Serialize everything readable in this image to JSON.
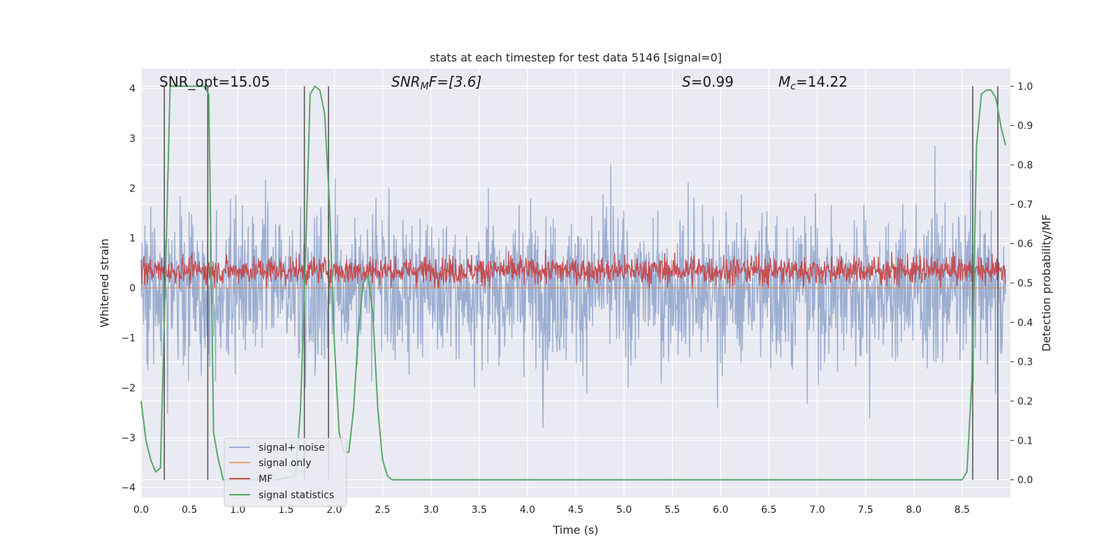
{
  "chart_data": {
    "type": "line",
    "title": "stats at each timestep for test data 5146 [signal=0]",
    "xlabel": "Time (s)",
    "ylabel": "Whitened strain",
    "y2label": "Detection probability/MF",
    "xlim": [
      0.0,
      9.0
    ],
    "ylim": [
      -4.2,
      4.4
    ],
    "y2lim": [
      -0.045,
      1.045
    ],
    "xticks": [
      "0.0",
      "0.5",
      "1.0",
      "1.5",
      "2.0",
      "2.5",
      "3.0",
      "3.5",
      "4.0",
      "4.5",
      "5.0",
      "5.5",
      "6.0",
      "6.5",
      "7.0",
      "7.5",
      "8.0",
      "8.5"
    ],
    "xtick_values": [
      0.0,
      0.5,
      1.0,
      1.5,
      2.0,
      2.5,
      3.0,
      3.5,
      4.0,
      4.5,
      5.0,
      5.5,
      6.0,
      6.5,
      7.0,
      7.5,
      8.0,
      8.5
    ],
    "yticks": [
      "4",
      "3",
      "2",
      "1",
      "0",
      "−1",
      "−2",
      "−3",
      "−4"
    ],
    "ytick_values": [
      4,
      3,
      2,
      1,
      0,
      -1,
      -2,
      -3,
      -4
    ],
    "y2ticks": [
      "1.0",
      "0.9",
      "0.8",
      "0.7",
      "0.6",
      "0.5",
      "0.4",
      "0.3",
      "0.2",
      "0.1",
      "0.0"
    ],
    "y2tick_values": [
      1.0,
      0.9,
      0.8,
      0.7,
      0.6,
      0.5,
      0.4,
      0.3,
      0.2,
      0.1,
      0.0
    ],
    "grid": true,
    "legend_placement": "lower-left",
    "annotations": {
      "snr_opt": "SNR_opt=15.05",
      "snr_mf_base": "SNR",
      "snr_mf_sub": "M",
      "snr_mf_rest": "F=[3.6]",
      "s_label": "S",
      "s_rest": "=0.99",
      "mc_base": "M",
      "mc_sub": "c",
      "mc_rest": "=14.22"
    },
    "series": [
      {
        "name": "signal+ noise",
        "color": "#4c72b0",
        "axis": "left",
        "style": "noise",
        "amplitude_envelope": 1.6,
        "peak_range": [
          -3.7,
          4.0
        ]
      },
      {
        "name": "signal only",
        "color": "#dd8452",
        "axis": "left",
        "style": "flat",
        "value": 0.0
      },
      {
        "name": "MF",
        "color": "#c44e52",
        "axis": "left",
        "style": "noise-positive",
        "range": [
          0.0,
          1.0
        ]
      },
      {
        "name": "signal statistics",
        "color": "#55a868",
        "axis": "right",
        "x": [
          0.0,
          0.05,
          0.1,
          0.15,
          0.2,
          0.25,
          0.3,
          0.4,
          0.5,
          0.6,
          0.65,
          0.7,
          0.75,
          0.8,
          0.85,
          0.9,
          1.0,
          1.2,
          1.4,
          1.6,
          1.65,
          1.7,
          1.75,
          1.8,
          1.85,
          1.9,
          1.95,
          2.0,
          2.05,
          2.1,
          2.15,
          2.2,
          2.25,
          2.3,
          2.35,
          2.4,
          2.45,
          2.5,
          2.55,
          2.6,
          2.7,
          3.0,
          4.0,
          5.0,
          6.0,
          7.0,
          8.0,
          8.5,
          8.55,
          8.6,
          8.65,
          8.7,
          8.75,
          8.8,
          8.85,
          8.9,
          8.95
        ],
        "y": [
          0.2,
          0.1,
          0.05,
          0.02,
          0.03,
          0.5,
          1.0,
          1.0,
          1.0,
          1.0,
          1.0,
          0.98,
          0.12,
          0.05,
          0.0,
          0.0,
          0.0,
          0.0,
          0.0,
          0.01,
          0.18,
          0.55,
          0.98,
          1.0,
          0.99,
          0.93,
          0.7,
          0.35,
          0.12,
          0.07,
          0.07,
          0.18,
          0.38,
          0.5,
          0.52,
          0.42,
          0.18,
          0.05,
          0.01,
          0.0,
          0.0,
          0.0,
          0.0,
          0.0,
          0.0,
          0.0,
          0.0,
          0.0,
          0.02,
          0.25,
          0.85,
          0.98,
          0.99,
          0.99,
          0.97,
          0.9,
          0.85
        ]
      }
    ],
    "vertical_lines": [
      0.24,
      0.69,
      1.69,
      1.94,
      8.61,
      8.87
    ]
  }
}
